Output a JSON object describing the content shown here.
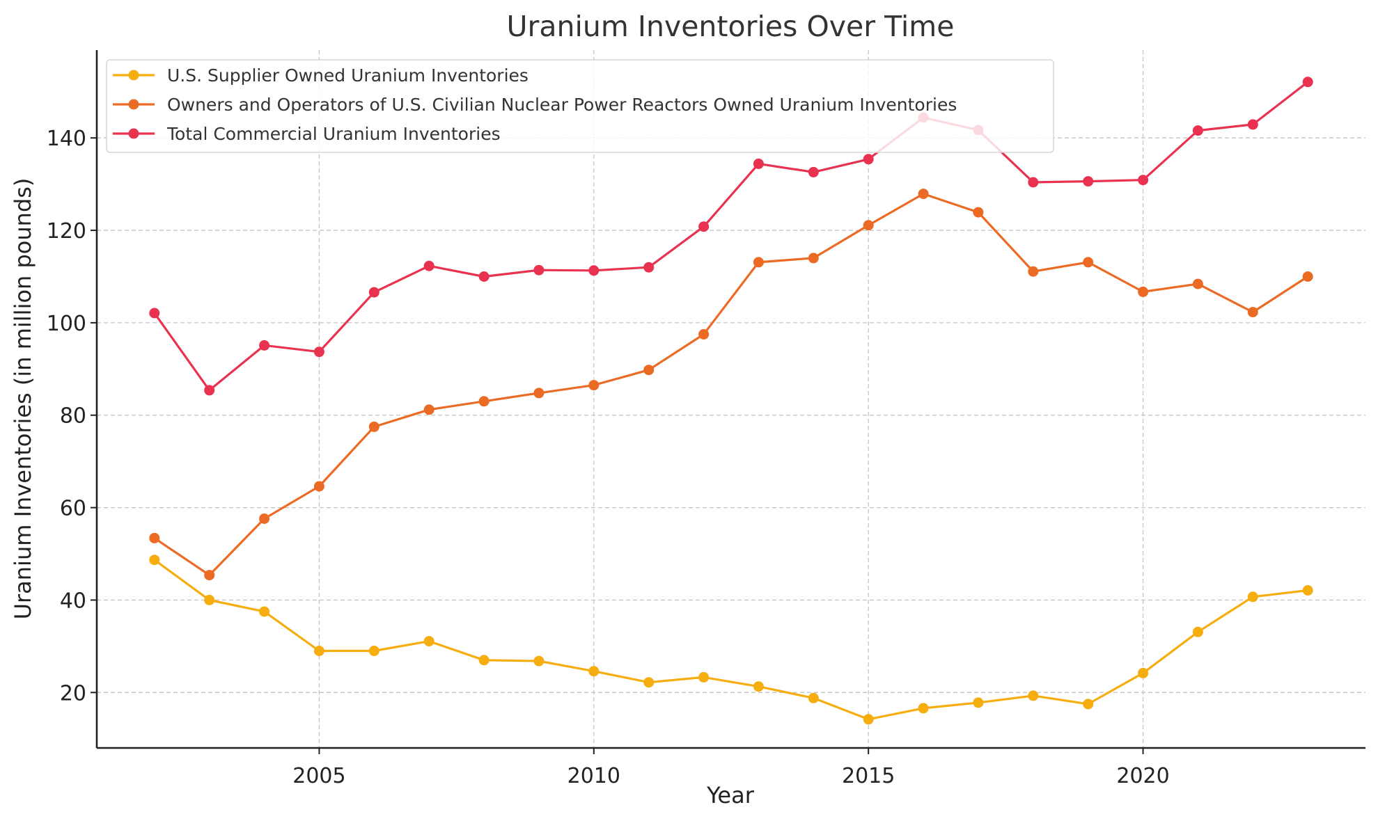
{
  "chart_data": {
    "type": "line",
    "title": "Uranium Inventories Over Time",
    "xlabel": "Year",
    "ylabel": "Uranium Inventories (in million pounds)",
    "xlim": [
      2000.95,
      2024.05
    ],
    "ylim": [
      8,
      159
    ],
    "x_ticks": [
      2005,
      2010,
      2015,
      2020
    ],
    "y_ticks": [
      20,
      40,
      60,
      80,
      100,
      120,
      140
    ],
    "grid": true,
    "legend_position": "top-left",
    "x": [
      2002,
      2003,
      2004,
      2005,
      2006,
      2007,
      2008,
      2009,
      2010,
      2011,
      2012,
      2013,
      2014,
      2015,
      2016,
      2017,
      2018,
      2019,
      2020,
      2021,
      2022,
      2023
    ],
    "series": [
      {
        "name": "U.S. Supplier Owned Uranium Inventories",
        "color": "#f5ad0f",
        "values": [
          48.7,
          40.0,
          37.5,
          29.0,
          29.0,
          31.1,
          27.0,
          26.8,
          24.6,
          22.2,
          23.3,
          21.3,
          18.8,
          14.2,
          16.6,
          17.8,
          19.3,
          17.5,
          24.2,
          33.1,
          40.7,
          42.1
        ]
      },
      {
        "name": "Owners and Operators of U.S. Civilian Nuclear Power Reactors Owned Uranium Inventories",
        "color": "#ec6b24",
        "values": [
          53.4,
          45.4,
          57.6,
          64.6,
          77.5,
          81.2,
          83.0,
          84.8,
          86.5,
          89.8,
          97.5,
          113.1,
          114.0,
          121.1,
          127.9,
          123.9,
          111.1,
          113.1,
          106.7,
          108.4,
          102.3,
          110.0
        ]
      },
      {
        "name": "Total Commercial Uranium Inventories",
        "color": "#e8324f",
        "values": [
          102.1,
          85.4,
          95.1,
          93.7,
          106.6,
          112.3,
          110.0,
          111.4,
          111.3,
          112.0,
          120.8,
          134.4,
          132.6,
          135.4,
          144.4,
          141.7,
          130.4,
          130.6,
          130.9,
          141.6,
          142.9,
          152.1
        ]
      }
    ]
  }
}
